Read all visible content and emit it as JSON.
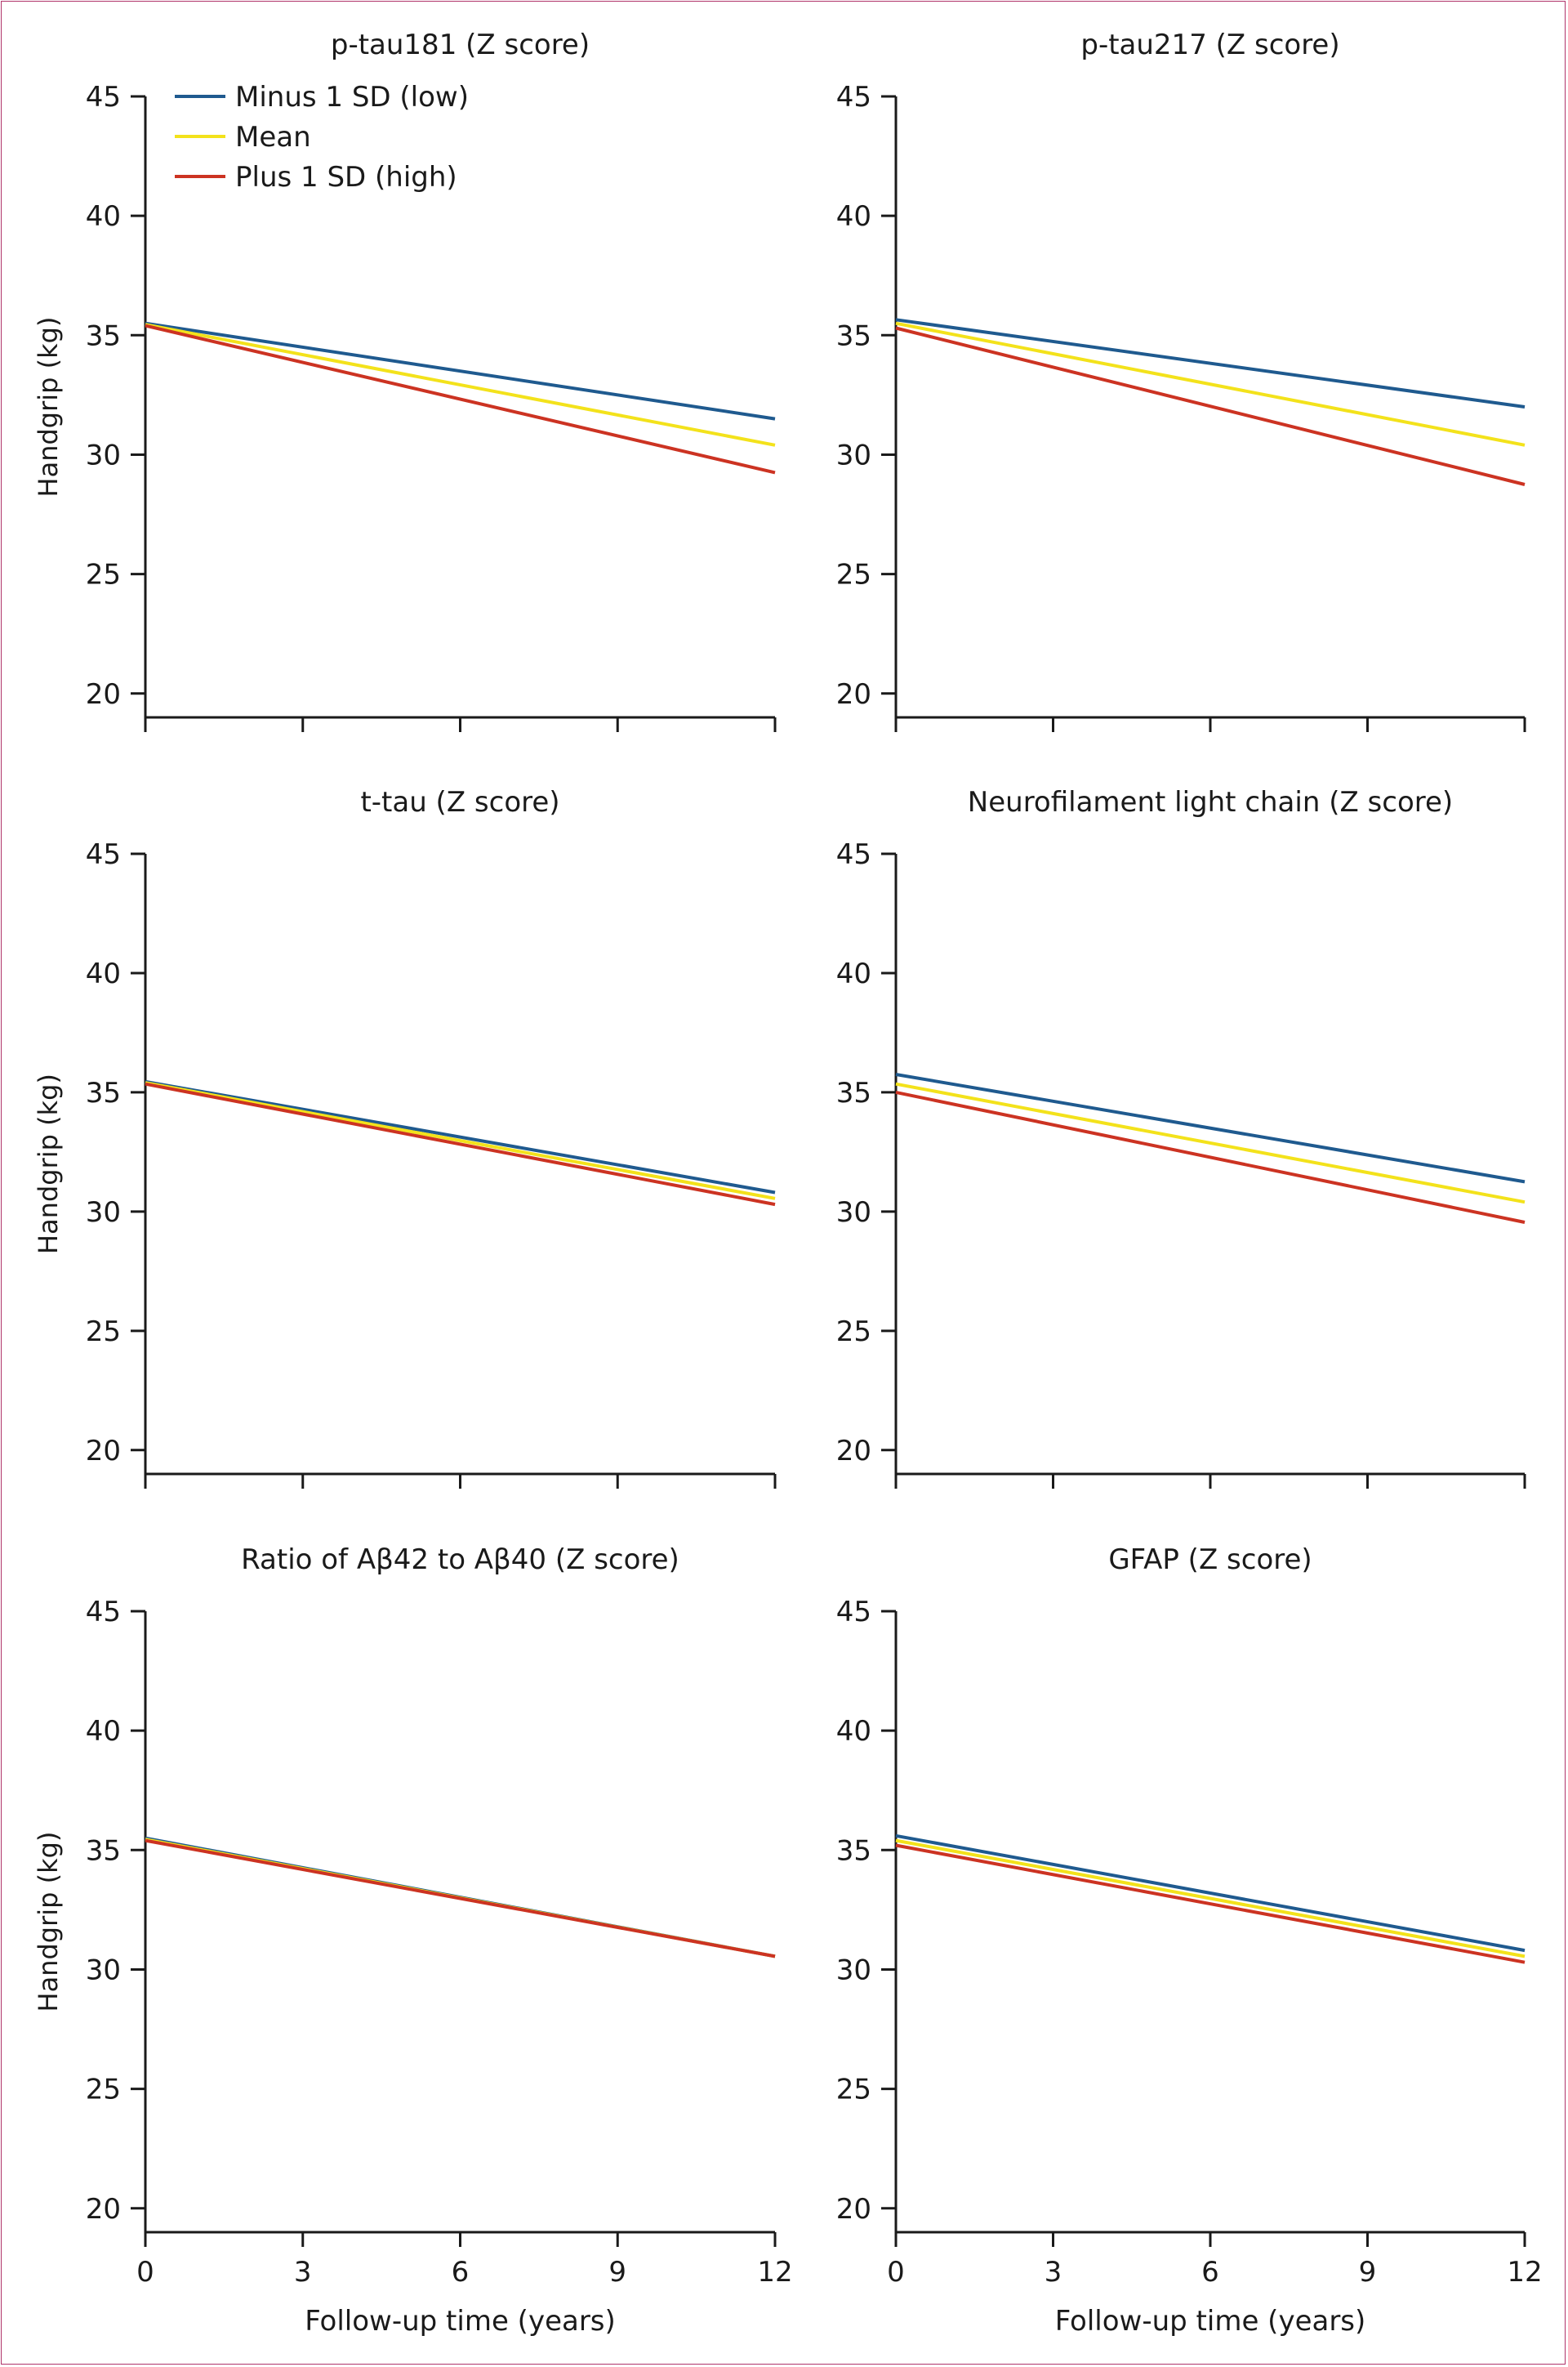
{
  "legend": {
    "items": [
      {
        "label": "Minus 1 SD (low)",
        "color": "#1f5a8f"
      },
      {
        "label": "Mean",
        "color": "#f3e21b"
      },
      {
        "label": "Plus 1 SD (high)",
        "color": "#cc3322"
      }
    ],
    "placement": "top-left"
  },
  "chart_data": [
    {
      "type": "line",
      "title": "p-tau181 (Z score)",
      "xlabel": "",
      "ylabel": "Handgrip (kg)",
      "xlim": [
        0,
        12
      ],
      "ylim": [
        19,
        45
      ],
      "xticks": [
        0,
        3,
        6,
        9,
        12
      ],
      "yticks": [
        20,
        25,
        30,
        35,
        40,
        45
      ],
      "show_xtick_labels": false,
      "series": [
        {
          "name": "Minus 1 SD (low)",
          "x": [
            0,
            12
          ],
          "values": [
            35.5,
            31.5
          ]
        },
        {
          "name": "Mean",
          "x": [
            0,
            12
          ],
          "values": [
            35.45,
            30.4
          ]
        },
        {
          "name": "Plus 1 SD (high)",
          "x": [
            0,
            12
          ],
          "values": [
            35.4,
            29.25
          ]
        }
      ]
    },
    {
      "type": "line",
      "title": "p-tau217 (Z score)",
      "xlabel": "",
      "ylabel": "",
      "xlim": [
        0,
        12
      ],
      "ylim": [
        19,
        45
      ],
      "xticks": [
        0,
        3,
        6,
        9,
        12
      ],
      "yticks": [
        20,
        25,
        30,
        35,
        40,
        45
      ],
      "show_xtick_labels": false,
      "series": [
        {
          "name": "Minus 1 SD (low)",
          "x": [
            0,
            12
          ],
          "values": [
            35.65,
            32.0
          ]
        },
        {
          "name": "Mean",
          "x": [
            0,
            12
          ],
          "values": [
            35.5,
            30.4
          ]
        },
        {
          "name": "Plus 1 SD (high)",
          "x": [
            0,
            12
          ],
          "values": [
            35.3,
            28.75
          ]
        }
      ]
    },
    {
      "type": "line",
      "title": "t-tau (Z score)",
      "xlabel": "",
      "ylabel": "Handgrip (kg)",
      "xlim": [
        0,
        12
      ],
      "ylim": [
        19,
        45
      ],
      "xticks": [
        0,
        3,
        6,
        9,
        12
      ],
      "yticks": [
        20,
        25,
        30,
        35,
        40,
        45
      ],
      "show_xtick_labels": false,
      "series": [
        {
          "name": "Minus 1 SD (low)",
          "x": [
            0,
            12
          ],
          "values": [
            35.45,
            30.8
          ]
        },
        {
          "name": "Mean",
          "x": [
            0,
            12
          ],
          "values": [
            35.4,
            30.55
          ]
        },
        {
          "name": "Plus 1 SD (high)",
          "x": [
            0,
            12
          ],
          "values": [
            35.35,
            30.3
          ]
        }
      ]
    },
    {
      "type": "line",
      "title": "Neurofilament light chain (Z score)",
      "xlabel": "",
      "ylabel": "",
      "xlim": [
        0,
        12
      ],
      "ylim": [
        19,
        45
      ],
      "xticks": [
        0,
        3,
        6,
        9,
        12
      ],
      "yticks": [
        20,
        25,
        30,
        35,
        40,
        45
      ],
      "show_xtick_labels": false,
      "series": [
        {
          "name": "Minus 1 SD (low)",
          "x": [
            0,
            12
          ],
          "values": [
            35.75,
            31.25
          ]
        },
        {
          "name": "Mean",
          "x": [
            0,
            12
          ],
          "values": [
            35.35,
            30.4
          ]
        },
        {
          "name": "Plus 1 SD (high)",
          "x": [
            0,
            12
          ],
          "values": [
            35.0,
            29.55
          ]
        }
      ]
    },
    {
      "type": "line",
      "title": "Ratio of Aβ42 to Aβ40 (Z score)",
      "xlabel": "Follow-up time (years)",
      "ylabel": "Handgrip (kg)",
      "xlim": [
        0,
        12
      ],
      "ylim": [
        19,
        45
      ],
      "xticks": [
        0,
        3,
        6,
        9,
        12
      ],
      "yticks": [
        20,
        25,
        30,
        35,
        40,
        45
      ],
      "show_xtick_labels": true,
      "series": [
        {
          "name": "Minus 1 SD (low)",
          "x": [
            0,
            12
          ],
          "values": [
            35.5,
            30.55
          ]
        },
        {
          "name": "Mean",
          "x": [
            0,
            12
          ],
          "values": [
            35.45,
            30.55
          ]
        },
        {
          "name": "Plus 1 SD (high)",
          "x": [
            0,
            12
          ],
          "values": [
            35.4,
            30.55
          ]
        }
      ]
    },
    {
      "type": "line",
      "title": "GFAP (Z score)",
      "xlabel": "Follow-up time (years)",
      "ylabel": "",
      "xlim": [
        0,
        12
      ],
      "ylim": [
        19,
        45
      ],
      "xticks": [
        0,
        3,
        6,
        9,
        12
      ],
      "yticks": [
        20,
        25,
        30,
        35,
        40,
        45
      ],
      "show_xtick_labels": true,
      "series": [
        {
          "name": "Minus 1 SD (low)",
          "x": [
            0,
            12
          ],
          "values": [
            35.6,
            30.8
          ]
        },
        {
          "name": "Mean",
          "x": [
            0,
            12
          ],
          "values": [
            35.4,
            30.55
          ]
        },
        {
          "name": "Plus 1 SD (high)",
          "x": [
            0,
            12
          ],
          "values": [
            35.2,
            30.3
          ]
        }
      ]
    }
  ]
}
